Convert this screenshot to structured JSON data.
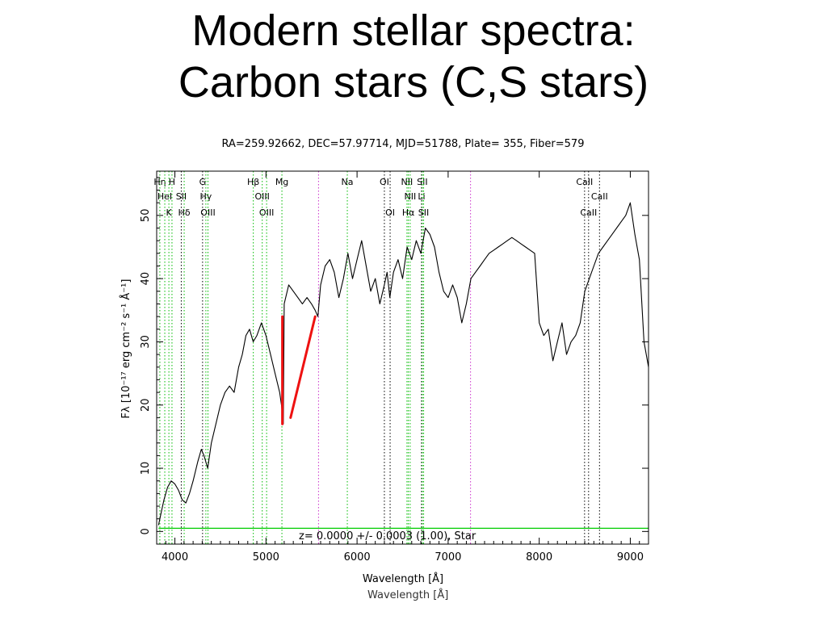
{
  "slide": {
    "title_line1": "Modern stellar spectra:",
    "title_line2": "Carbon stars (C,S stars)"
  },
  "chart_data": {
    "type": "line",
    "title": "RA=259.92662, DEC=57.97714, MJD=51788, Plate= 355, Fiber=579",
    "xlabel": "Wavelength [Å]",
    "ylabel": "Fλ [10⁻¹⁷ erg cm⁻² s⁻¹ Å⁻¹]",
    "xlim": [
      3800,
      9200
    ],
    "ylim": [
      -2,
      57
    ],
    "xticks": [
      4000,
      5000,
      6000,
      7000,
      8000,
      9000
    ],
    "yticks": [
      0,
      10,
      20,
      30,
      40,
      50
    ],
    "redshift_label": "z=  0.0000 +/-  0.0003 (1.00), Star",
    "series": [
      {
        "color": "#000000",
        "x": [
          3820,
          3850,
          3880,
          3920,
          3960,
          4000,
          4040,
          4080,
          4120,
          4160,
          4200,
          4250,
          4290,
          4320,
          4360,
          4400,
          4450,
          4500,
          4550,
          4600,
          4650,
          4700,
          4740,
          4780,
          4820,
          4860,
          4900,
          4950,
          5000,
          5050,
          5100,
          5150,
          5170,
          5190,
          5200,
          5250,
          5300,
          5350,
          5400,
          5450,
          5500,
          5540,
          5570,
          5600,
          5650,
          5700,
          5750,
          5800,
          5850,
          5900,
          5950,
          6000,
          6050,
          6100,
          6150,
          6200,
          6250,
          6300,
          6330,
          6360,
          6400,
          6450,
          6500,
          6550,
          6600,
          6650,
          6700,
          6750,
          6800,
          6850,
          6900,
          6950,
          7000,
          7050,
          7100,
          7150,
          7200,
          7250,
          7300,
          7350,
          7400,
          7450,
          7500,
          7550,
          7600,
          7650,
          7700,
          7750,
          7800,
          7850,
          7900,
          7950,
          8000,
          8050,
          8100,
          8150,
          8200,
          8250,
          8300,
          8350,
          8400,
          8450,
          8500,
          8550,
          8600,
          8650,
          8700,
          8750,
          8800,
          8850,
          8900,
          8950,
          9000,
          9050,
          9100,
          9150,
          9200
        ],
        "values": [
          1,
          3,
          5,
          7,
          8,
          7.5,
          6.5,
          5,
          4.5,
          6,
          8,
          11,
          13,
          12,
          10,
          14,
          17,
          20,
          22,
          23,
          22,
          26,
          28,
          31,
          32,
          30,
          31,
          33,
          31,
          28,
          25,
          22,
          20,
          17,
          36,
          39,
          38,
          37,
          36,
          37,
          36,
          35,
          34,
          39,
          42,
          43,
          41,
          37,
          40,
          44,
          40,
          43,
          46,
          42,
          38,
          40,
          36,
          39,
          41,
          37,
          41,
          43,
          40,
          45,
          43,
          46,
          44,
          48,
          47,
          45,
          41,
          38,
          37,
          39,
          37,
          33,
          36,
          40,
          41,
          42,
          43,
          44,
          44.5,
          45,
          45.5,
          46,
          46.5,
          46,
          45.5,
          45,
          44.5,
          44,
          33,
          31,
          32,
          27,
          30,
          33,
          28,
          30,
          31,
          33,
          38,
          40,
          42,
          44,
          45,
          46,
          47,
          48,
          49,
          50,
          52,
          47,
          43,
          30,
          26
        ]
      },
      {
        "color": "#00cc00",
        "x": [
          3820,
          9200
        ],
        "values": [
          0.5,
          0.5
        ]
      }
    ],
    "line_markers": [
      {
        "label": "Hη",
        "x": 3835,
        "row": 1,
        "color": "#00bb00",
        "style": "dotted"
      },
      {
        "label": "H",
        "x": 3968,
        "row": 1,
        "color": "#00bb00",
        "style": "dotted"
      },
      {
        "label": "HeI",
        "x": 3889,
        "row": 2,
        "color": "#00bb00",
        "style": "dotted"
      },
      {
        "label": "SII",
        "x": 4070,
        "row": 2,
        "color": "#000000",
        "style": "dotted"
      },
      {
        "label": "K",
        "x": 3934,
        "row": 3,
        "color": "#00bb00",
        "style": "dotted"
      },
      {
        "label": "Hδ",
        "x": 4102,
        "row": 3,
        "color": "#00bb00",
        "style": "dotted"
      },
      {
        "label": "G",
        "x": 4304,
        "row": 1,
        "color": "#000000",
        "style": "dotted"
      },
      {
        "label": "Hγ",
        "x": 4340,
        "row": 2,
        "color": "#00bb00",
        "style": "dotted"
      },
      {
        "label": "OIII",
        "x": 4363,
        "row": 3,
        "color": "#00bb00",
        "style": "dotted"
      },
      {
        "label": "Hβ",
        "x": 4861,
        "row": 1,
        "color": "#00bb00",
        "style": "dotted"
      },
      {
        "label": "OIII",
        "x": 4959,
        "row": 2,
        "color": "#00bb00",
        "style": "dotted"
      },
      {
        "label": "OIII",
        "x": 5007,
        "row": 3,
        "color": "#00bb00",
        "style": "dotted"
      },
      {
        "label": "Mg",
        "x": 5175,
        "row": 1,
        "color": "#00bb00",
        "style": "dotted"
      },
      {
        "label": "",
        "x": 5577,
        "row": 0,
        "color": "#cc33cc",
        "style": "dotted"
      },
      {
        "label": "Na",
        "x": 5893,
        "row": 1,
        "color": "#00bb00",
        "style": "dotted"
      },
      {
        "label": "OI",
        "x": 6300,
        "row": 1,
        "color": "#000000",
        "style": "dotted"
      },
      {
        "label": "OI",
        "x": 6363,
        "row": 3,
        "color": "#000000",
        "style": "dotted"
      },
      {
        "label": "NII",
        "x": 6548,
        "row": 1,
        "color": "#00bb00",
        "style": "dotted"
      },
      {
        "label": "NII",
        "x": 6583,
        "row": 2,
        "color": "#00bb00",
        "style": "dotted"
      },
      {
        "label": "Hα",
        "x": 6563,
        "row": 3,
        "color": "#00bb00",
        "style": "dotted"
      },
      {
        "label": "Li",
        "x": 6708,
        "row": 2,
        "color": "#000000",
        "style": "dotted"
      },
      {
        "label": "SII",
        "x": 6716,
        "row": 1,
        "color": "#00bb00",
        "style": "dotted"
      },
      {
        "label": "SII",
        "x": 6731,
        "row": 3,
        "color": "#00bb00",
        "style": "dotted"
      },
      {
        "label": "",
        "x": 7246,
        "row": 0,
        "color": "#cc33cc",
        "style": "dotted"
      },
      {
        "label": "CaII",
        "x": 8498,
        "row": 1,
        "color": "#000000",
        "style": "dotted"
      },
      {
        "label": "CaII",
        "x": 8662,
        "row": 2,
        "color": "#000000",
        "style": "dotted"
      },
      {
        "label": "CaII",
        "x": 8542,
        "row": 3,
        "color": "#000000",
        "style": "dotted"
      }
    ],
    "annotations": [
      {
        "type": "red-line",
        "color": "#ee1111",
        "x1": 5180,
        "y1": 34,
        "x2": 5180,
        "y2": 17
      },
      {
        "type": "red-line",
        "color": "#ee1111",
        "x1": 5540,
        "y1": 34,
        "x2": 5270,
        "y2": 18
      }
    ],
    "grid": false
  }
}
